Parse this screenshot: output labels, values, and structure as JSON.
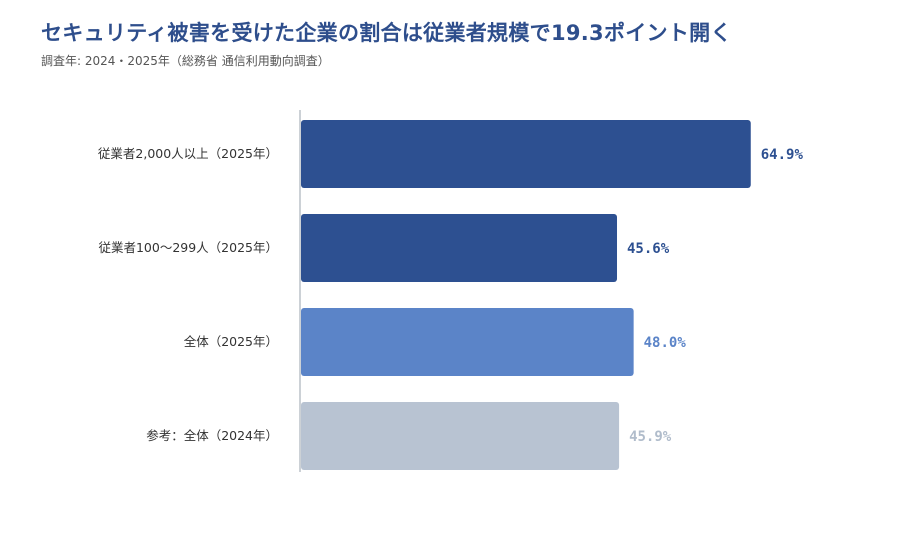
{
  "header": {
    "title": "セキュリティ被害を受けた企業の割合は従業者規模で19.3ポイント開く",
    "subtitle": "調査年: 2024・2025年（総務省 通信利用動向調査）"
  },
  "chart_data": {
    "type": "bar",
    "orientation": "horizontal",
    "categories": [
      "従業者2,000人以上（2025年）",
      "従業者100～299人（2025年）",
      "全体（2025年）",
      "参考：全体（2024年）"
    ],
    "values": [
      64.9,
      45.6,
      48.0,
      45.9
    ],
    "value_labels": [
      "64.9%",
      "45.6%",
      "48.0%",
      "45.9%"
    ],
    "unit": "%",
    "xlim": [
      0,
      100
    ],
    "grid": false,
    "colors": [
      "#2d5091",
      "#2d5091",
      "#5b84c8",
      "#b8c3d2"
    ],
    "label_colors": [
      "#2d5091",
      "#2d5091",
      "#5b84c8",
      "#b0bccb"
    ]
  }
}
